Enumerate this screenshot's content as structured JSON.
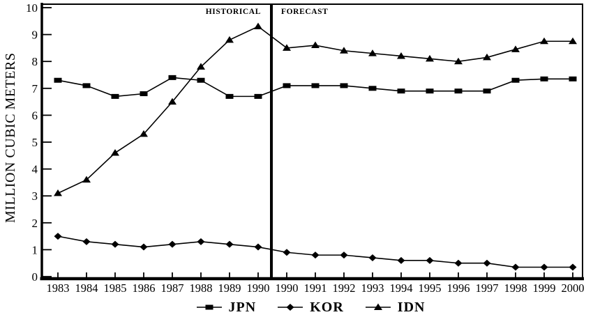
{
  "chart_data": {
    "type": "line",
    "title": "",
    "xlabel": "",
    "ylabel": "MILLION CUBIC METERS",
    "ylim": [
      0,
      10
    ],
    "ytick_step": 1,
    "grid": false,
    "legend_position": "bottom-center",
    "categories": [
      "1983",
      "1984",
      "1985",
      "1986",
      "1987",
      "1988",
      "1989",
      "1990",
      "1990",
      "1991",
      "1992",
      "1993",
      "1994",
      "1995",
      "1996",
      "1997",
      "1998",
      "1999",
      "2000"
    ],
    "series": [
      {
        "name": "JPN",
        "marker": "square",
        "values": [
          7.3,
          7.1,
          6.7,
          6.8,
          7.4,
          7.3,
          6.7,
          6.7,
          7.1,
          7.1,
          7.1,
          7.0,
          6.9,
          6.9,
          6.9,
          6.9,
          7.3,
          7.35,
          7.35
        ]
      },
      {
        "name": "KOR",
        "marker": "diamond",
        "values": [
          1.5,
          1.3,
          1.2,
          1.1,
          1.2,
          1.3,
          1.2,
          1.1,
          0.9,
          0.8,
          0.8,
          0.7,
          0.6,
          0.6,
          0.5,
          0.5,
          0.35,
          0.35,
          0.35
        ]
      },
      {
        "name": "IDN",
        "marker": "triangle",
        "values": [
          3.1,
          3.6,
          4.6,
          5.3,
          6.5,
          7.8,
          8.8,
          9.3,
          8.5,
          8.6,
          8.4,
          8.3,
          8.2,
          8.1,
          8.0,
          8.15,
          8.45,
          8.75,
          8.75
        ]
      }
    ],
    "divider": {
      "after_index": 7,
      "left_label": "HISTORICAL",
      "right_label": "FORECAST"
    },
    "colors": {
      "ink": "#000000",
      "background": "#ffffff"
    }
  }
}
